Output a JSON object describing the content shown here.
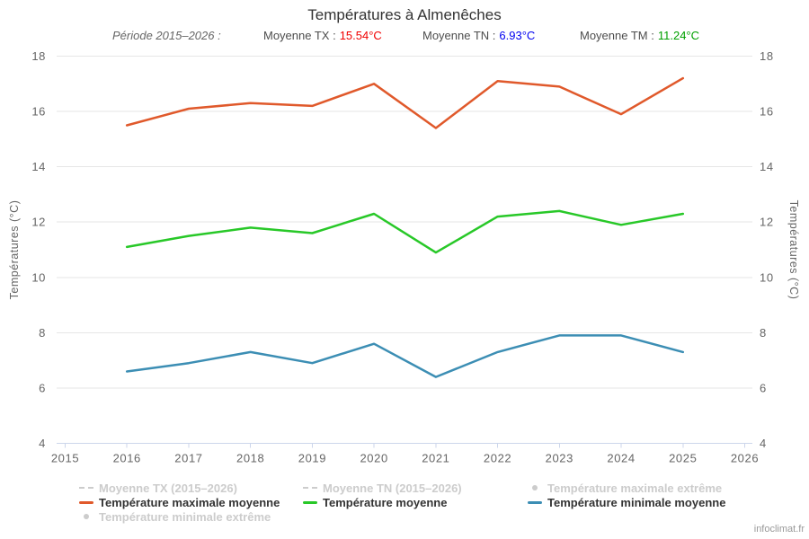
{
  "title": "Températures à Almenêches",
  "subtitle": {
    "period_label": "Période 2015–2026 :",
    "items": [
      {
        "label": "Moyenne TX :",
        "value": "15.54°C",
        "color": "#f00000"
      },
      {
        "label": "Moyenne TN :",
        "value": "6.93°C",
        "color": "#0000f0"
      },
      {
        "label": "Moyenne TM :",
        "value": "11.24°C",
        "color": "#00a000"
      }
    ]
  },
  "chart_data": {
    "type": "line",
    "x": [
      2016,
      2017,
      2018,
      2019,
      2020,
      2021,
      2022,
      2023,
      2024,
      2025
    ],
    "series": [
      {
        "id": "tx",
        "name": "Température maximale moyenne",
        "color": "#e0592b",
        "values": [
          15.5,
          16.1,
          16.3,
          16.2,
          17.0,
          15.4,
          17.1,
          16.9,
          15.9,
          17.2
        ]
      },
      {
        "id": "tm",
        "name": "Température moyenne",
        "color": "#28c828",
        "values": [
          11.1,
          11.5,
          11.8,
          11.6,
          12.3,
          10.9,
          12.2,
          12.4,
          11.9,
          12.3
        ]
      },
      {
        "id": "tn",
        "name": "Température minimale moyenne",
        "color": "#3c8eb4",
        "values": [
          6.6,
          6.9,
          7.3,
          6.9,
          7.6,
          6.4,
          7.3,
          7.9,
          7.9,
          7.3
        ]
      }
    ],
    "xlabel": "",
    "ylabel": "Températures (°C)",
    "ylabel_right": "Températures (°C)",
    "xticks": [
      2015,
      2016,
      2017,
      2018,
      2019,
      2020,
      2021,
      2022,
      2023,
      2024,
      2025,
      2026
    ],
    "yticks": [
      4,
      6,
      8,
      10,
      12,
      14,
      16,
      18
    ],
    "xlim": [
      2015,
      2026
    ],
    "ylim": [
      4,
      18
    ],
    "grid": "horizontal",
    "legend_position": "bottom"
  },
  "legend": {
    "items": [
      {
        "id": "moyenne-tx",
        "label": "Moyenne TX (2015–2026)",
        "symbol": "dash",
        "color": "#cccccc",
        "enabled": false,
        "col": 0,
        "row": 0
      },
      {
        "id": "moyenne-tn",
        "label": "Moyenne TN (2015–2026)",
        "symbol": "dash",
        "color": "#cccccc",
        "enabled": false,
        "col": 1,
        "row": 0
      },
      {
        "id": "tmax-extreme",
        "label": "Température maximale extrême",
        "symbol": "dot",
        "color": "#cccccc",
        "enabled": false,
        "col": 2,
        "row": 0
      },
      {
        "id": "tmax-moyenne",
        "label": "Température maximale moyenne",
        "symbol": "line",
        "color": "#e0592b",
        "enabled": true,
        "col": 0,
        "row": 1
      },
      {
        "id": "tmoyenne",
        "label": "Température moyenne",
        "symbol": "line",
        "color": "#28c828",
        "enabled": true,
        "col": 1,
        "row": 1
      },
      {
        "id": "tmin-moyenne",
        "label": "Température minimale moyenne",
        "symbol": "line",
        "color": "#3c8eb4",
        "enabled": true,
        "col": 2,
        "row": 1
      },
      {
        "id": "tmin-extreme",
        "label": "Température minimale extrême",
        "symbol": "dot",
        "color": "#cccccc",
        "enabled": false,
        "col": 0,
        "row": 2
      }
    ]
  },
  "watermark": "infoclimat.fr",
  "colors": {
    "background": "#ffffff",
    "grid": "#e6e6e6",
    "axis_line": "#ccd6eb",
    "tick_text": "#666666",
    "title_text": "#333333",
    "subtitle_text": "#4d4d4d",
    "disabled": "#cccccc",
    "legend_text": "#333333",
    "watermark": "#999999"
  }
}
